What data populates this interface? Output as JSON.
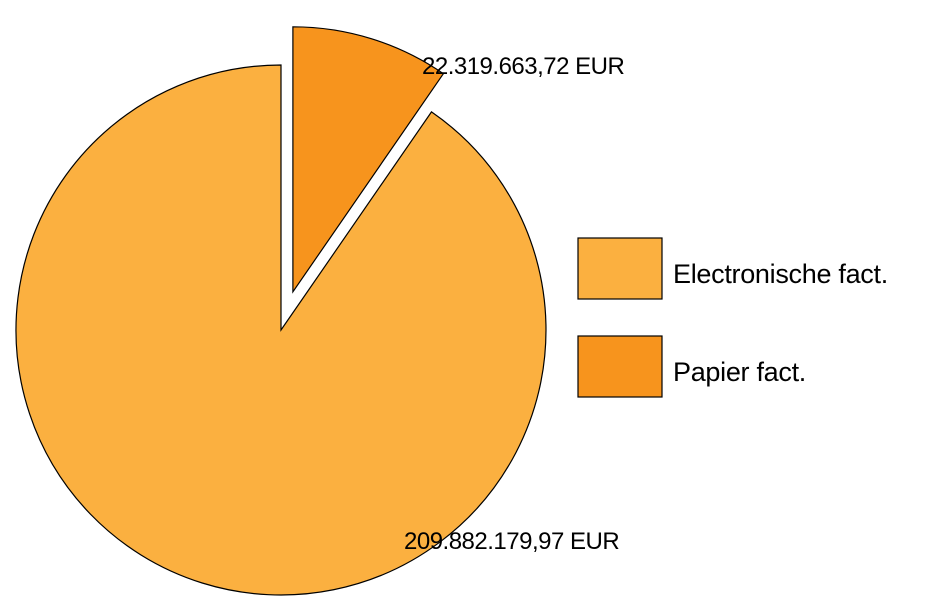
{
  "chart_data": {
    "type": "pie",
    "title": "",
    "unit": "EUR",
    "exploded_slice": "Papier fact.",
    "start_angle": "top (12 o'clock), clockwise",
    "series": [
      {
        "name": "Electronische fact.",
        "value": 209882179.97,
        "label": "209.882.179,97 EUR",
        "color": "#FBB040"
      },
      {
        "name": "Papier fact.",
        "value": 22319663.72,
        "label": "22.319.663,72 EUR",
        "color": "#F7941D"
      }
    ],
    "legend": {
      "position": "right",
      "entries": [
        "Electronische fact.",
        "Papier fact."
      ]
    },
    "slice_outline_color": "#000000"
  }
}
